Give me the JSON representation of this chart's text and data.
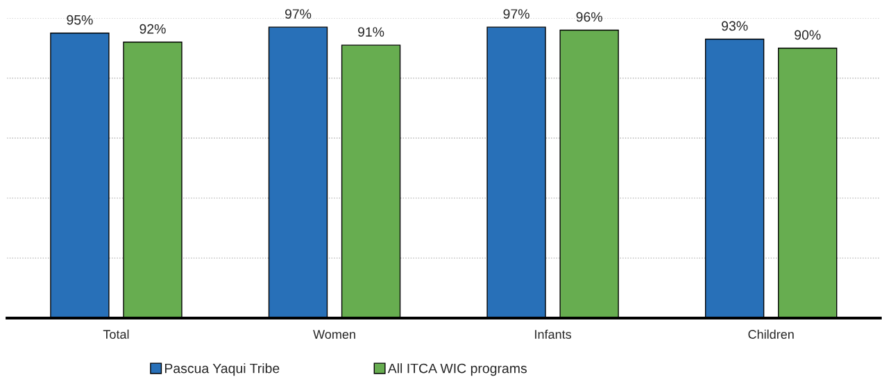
{
  "chart_data": {
    "type": "bar",
    "categories": [
      "Total",
      "Women",
      "Infants",
      "Children"
    ],
    "series": [
      {
        "name": "Pascua Yaqui Tribe",
        "color": "#2870b8",
        "values": [
          95,
          97,
          97,
          93
        ],
        "value_labels": [
          "95%",
          "97%",
          "97%",
          "93%"
        ]
      },
      {
        "name": "All ITCA WIC programs",
        "color": "#67ad50",
        "values": [
          92,
          91,
          96,
          90
        ],
        "value_labels": [
          "92%",
          "91%",
          "96%",
          "90%"
        ]
      }
    ],
    "ylim": [
      0,
      100
    ],
    "yticks": [
      {
        "value": 20,
        "label": null
      },
      {
        "value": 40,
        "label": null
      },
      {
        "value": 60,
        "label": null
      },
      {
        "value": 80,
        "label": null
      },
      {
        "value": 100,
        "label": null
      }
    ],
    "grid": "y",
    "legend": "bottom",
    "tick_labels": "x"
  }
}
